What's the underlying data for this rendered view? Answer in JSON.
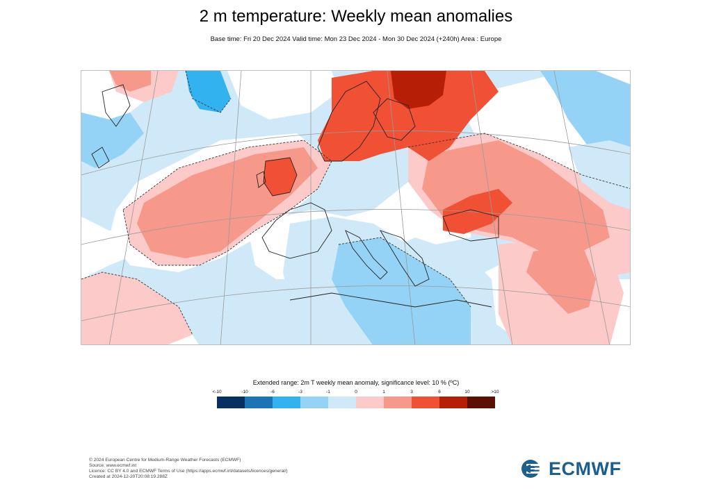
{
  "header": {
    "title": "2 m temperature: Weekly mean anomalies",
    "subtitle": "Base time: Fri 20 Dec 2024 Valid time: Mon 23 Dec 2024 - Mon 30 Dec 2024 (+240h) Area : Europe"
  },
  "legend": {
    "title": "Extended range: 2m T weekly mean anomaly, significance level: 10 % (ºC)",
    "ticks": [
      "<-10",
      "-10",
      "-6",
      "-3",
      "-1",
      "0",
      "1",
      "3",
      "6",
      "10",
      ">10"
    ],
    "colors": [
      "#053061",
      "#1a74b5",
      "#33b2f0",
      "#94d3f6",
      "#cfe9f9",
      "#fccac8",
      "#f7998a",
      "#f05034",
      "#b61f06",
      "#5c0f04"
    ]
  },
  "map_colors": {
    "ocean_neutral": "#ffffff",
    "light_blue": "#cfe9f9",
    "mid_blue": "#94d3f6",
    "strong_blue": "#33b2f0",
    "light_red": "#fccac8",
    "mid_red": "#f7998a",
    "strong_red": "#f05034",
    "dark_red": "#b61f06"
  },
  "footer": {
    "line1": "© 2024 European Centre for Medium-Range Weather Forecasts (ECMWF)",
    "line2": "Source: www.ecmwf.int",
    "line3": "Licence: CC BY 4.0 and ECMWF Terms of Use (https://apps.ecmwf.int/datasets/licences/general/)",
    "line4": "Created at 2024-12-20T20:08:19.288Z"
  },
  "logo": {
    "text": "ECMWF",
    "icon": "ecmwf-logo-icon"
  }
}
